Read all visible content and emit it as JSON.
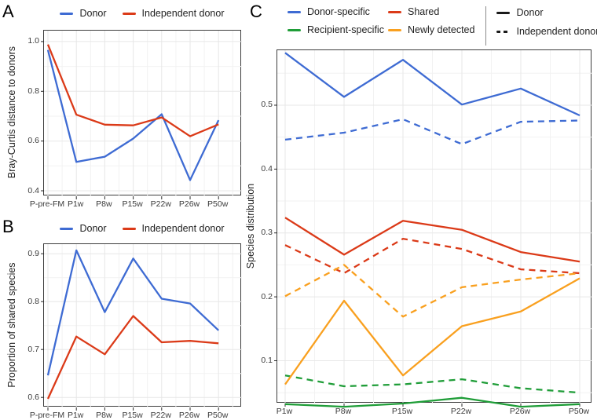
{
  "colors": {
    "blue": "#3E6BD3",
    "red": "#DB3A18",
    "green": "#1F9D38",
    "orange": "#F9A01F",
    "legend_black": "#1A1A1A"
  },
  "chart_data": [
    {
      "type": "line",
      "panel_label": "A",
      "ylabel": "Bray-Curtis distance to donors",
      "xlabel": "",
      "categories": [
        "P-pre-FM",
        "P1w",
        "P8w",
        "P15w",
        "P22w",
        "P26w",
        "P50w"
      ],
      "yticks": [
        "0.4",
        "0.6",
        "0.8",
        "1.0"
      ],
      "ylim": [
        0.378,
        1.044
      ],
      "grid": true,
      "legend_position": "top",
      "legend": [
        {
          "label": "Donor",
          "color": "#3E6BD3"
        },
        {
          "label": "Independent donor",
          "color": "#DB3A18"
        }
      ],
      "series": [
        {
          "name": "Donor",
          "color": "#3E6BD3",
          "dash": false,
          "values": [
            0.966,
            0.516,
            0.537,
            0.61,
            0.708,
            0.443,
            0.684
          ]
        },
        {
          "name": "Independent donor",
          "color": "#DB3A18",
          "dash": false,
          "values": [
            0.988,
            0.706,
            0.666,
            0.663,
            0.695,
            0.619,
            0.667
          ]
        }
      ]
    },
    {
      "type": "line",
      "panel_label": "B",
      "ylabel": "Proportion of shared species",
      "xlabel": "",
      "categories": [
        "P-pre-FM",
        "P1w",
        "P8w",
        "P15w",
        "P22w",
        "P26w",
        "P50w"
      ],
      "yticks": [
        "0.6",
        "0.7",
        "0.8",
        "0.9"
      ],
      "ylim": [
        0.579,
        0.92
      ],
      "grid": true,
      "legend_position": "top",
      "legend": [
        {
          "label": "Donor",
          "color": "#3E6BD3"
        },
        {
          "label": "Independent donor",
          "color": "#DB3A18"
        }
      ],
      "series": [
        {
          "name": "Donor",
          "color": "#3E6BD3",
          "dash": false,
          "values": [
            0.646,
            0.907,
            0.778,
            0.89,
            0.806,
            0.796,
            0.74
          ]
        },
        {
          "name": "Independent donor",
          "color": "#DB3A18",
          "dash": false,
          "values": [
            0.597,
            0.727,
            0.69,
            0.77,
            0.715,
            0.718,
            0.713
          ]
        }
      ]
    },
    {
      "type": "line",
      "panel_label": "C",
      "ylabel": "Species distribution",
      "xlabel": "",
      "categories": [
        "P1w",
        "P8w",
        "P15w",
        "P22w",
        "P26w",
        "P50w"
      ],
      "yticks": [
        "0.1",
        "0.2",
        "0.3",
        "0.4",
        "0.5"
      ],
      "ylim": [
        0.033,
        0.586
      ],
      "grid": true,
      "legend_position": "top",
      "color_legend": [
        {
          "label": "Donor-specific",
          "color": "#3E6BD3"
        },
        {
          "label": "Shared",
          "color": "#DB3A18"
        },
        {
          "label": "Recipient-specific",
          "color": "#1F9D38"
        },
        {
          "label": "Newly detected",
          "color": "#F9A01F"
        }
      ],
      "linetype_legend": [
        {
          "label": "Donor",
          "style": "solid"
        },
        {
          "label": "Independent donor",
          "style": "dashed"
        }
      ],
      "series": [
        {
          "name": "Donor-specific",
          "group": "Donor",
          "color": "#3E6BD3",
          "dash": false,
          "values": [
            0.582,
            0.513,
            0.571,
            0.501,
            0.526,
            0.484
          ]
        },
        {
          "name": "Donor-specific",
          "group": "Independent donor",
          "color": "#3E6BD3",
          "dash": true,
          "values": [
            0.446,
            0.457,
            0.478,
            0.439,
            0.474,
            0.476
          ]
        },
        {
          "name": "Shared",
          "group": "Donor",
          "color": "#DB3A18",
          "dash": false,
          "values": [
            0.324,
            0.266,
            0.319,
            0.305,
            0.27,
            0.255
          ]
        },
        {
          "name": "Shared",
          "group": "Independent donor",
          "color": "#DB3A18",
          "dash": true,
          "values": [
            0.281,
            0.237,
            0.291,
            0.275,
            0.243,
            0.237
          ]
        },
        {
          "name": "Recipient-specific",
          "group": "Donor",
          "color": "#1F9D38",
          "dash": false,
          "values": [
            0.032,
            0.028,
            0.033,
            0.042,
            0.028,
            0.032
          ]
        },
        {
          "name": "Recipient-specific",
          "group": "Independent donor",
          "color": "#1F9D38",
          "dash": true,
          "values": [
            0.077,
            0.06,
            0.063,
            0.071,
            0.057,
            0.05
          ]
        },
        {
          "name": "Newly detected",
          "group": "Donor",
          "color": "#F9A01F",
          "dash": false,
          "values": [
            0.063,
            0.194,
            0.077,
            0.154,
            0.177,
            0.229
          ]
        },
        {
          "name": "Newly detected",
          "group": "Independent donor",
          "color": "#F9A01F",
          "dash": true,
          "values": [
            0.201,
            0.25,
            0.169,
            0.215,
            0.227,
            0.237
          ]
        }
      ]
    }
  ]
}
